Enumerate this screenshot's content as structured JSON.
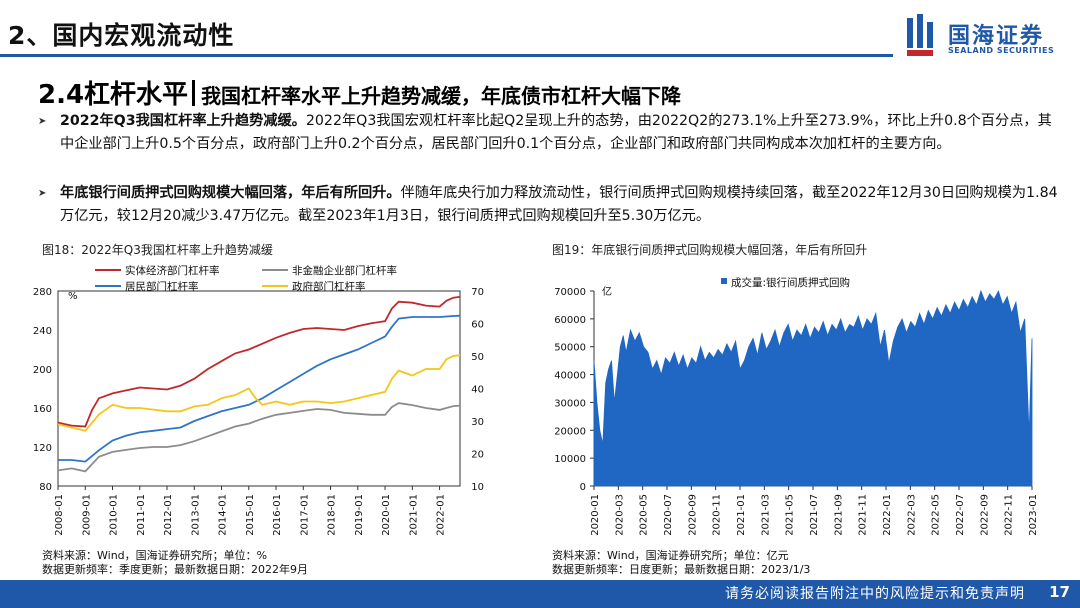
{
  "header": {
    "section_title": "2、国内宏观流动性",
    "logo_cn": "国海证券",
    "logo_en": "SEALAND SECURITIES"
  },
  "subtitle": {
    "lead": "2.4杠杆水平",
    "rest": "我国杠杆率水平上升趋势减缓，年底债市杠杆大幅下降"
  },
  "bullets": [
    {
      "bold": "2022年Q3我国杠杆率上升趋势减缓。",
      "text": "2022年Q3我国宏观杠杆率比起Q2呈现上升的态势，由2022Q2的273.1%上升至273.9%，环比上升0.8个百分点，其中企业部门上升0.5个百分点，政府部门上升0.2个百分点，居民部门回升0.1个百分点，企业部门和政府部门共同构成本次加杠杆的主要方向。"
    },
    {
      "bold": "年底银行间质押式回购规模大幅回落，年后有所回升。",
      "text": "伴随年底央行加力释放流动性，银行间质押式回购规模持续回落，截至2022年12月30日回购规模为1.84万亿元，较12月20减少3.47万亿元。截至2023年1月3日，银行间质押式回购规模回升至5.30万亿元。"
    }
  ],
  "figures": [
    {
      "caption": "图18：2022年Q3我国杠杆率上升趋势减缓",
      "source_line1": "资料来源：Wind，国海证券研究所；单位：%",
      "source_line2": "数据更新频率：季度更新；最新数据日期：2022年9月"
    },
    {
      "caption": "图19：年底银行间质押式回购规模大幅回落，年后有所回升",
      "source_line1": "资料来源：Wind，国海证券研究所；单位：亿元",
      "source_line2": "数据更新频率：日度更新；最新数据日期：2023/1/3"
    }
  ],
  "footer": {
    "disclaimer": "请务必阅读报告附注中的风险提示和免责声明",
    "page": "17"
  },
  "colors": {
    "brand": "#1f58a8",
    "red": "#c0282d",
    "gray": "#8c8c8c",
    "blue": "#2e75c9",
    "yellow": "#f5c518",
    "bar": "#1f67c2"
  },
  "chart_data": [
    {
      "type": "line",
      "title": "2022年Q3我国杠杆率上升趋势减缓",
      "left_unit": "%",
      "left_ylim": [
        80,
        280
      ],
      "left_ticks": [
        80,
        120,
        160,
        200,
        240,
        280
      ],
      "right_ylim": [
        10,
        70
      ],
      "right_ticks": [
        10,
        20,
        30,
        40,
        50,
        60,
        70
      ],
      "x_ticks": [
        "2008-01",
        "2009-01",
        "2010-01",
        "2011-01",
        "2012-01",
        "2013-01",
        "2014-01",
        "2015-01",
        "2016-01",
        "2017-01",
        "2018-01",
        "2019-01",
        "2020-01",
        "2021-01",
        "2022-01"
      ],
      "x_start": 2008.0,
      "x_end": 2022.75,
      "series": [
        {
          "name": "实体经济部门杠杆率",
          "axis": "left",
          "color": "#c0282d",
          "x": [
            2008.0,
            2008.5,
            2009.0,
            2009.25,
            2009.5,
            2010.0,
            2010.5,
            2011.0,
            2011.5,
            2012.0,
            2012.5,
            2013.0,
            2013.5,
            2014.0,
            2014.5,
            2015.0,
            2015.5,
            2016.0,
            2016.5,
            2017.0,
            2017.5,
            2018.0,
            2018.5,
            2019.0,
            2019.5,
            2020.0,
            2020.25,
            2020.5,
            2021.0,
            2021.5,
            2022.0,
            2022.25,
            2022.5,
            2022.75
          ],
          "values": [
            145,
            142,
            141,
            158,
            170,
            175,
            178,
            181,
            180,
            179,
            183,
            190,
            200,
            208,
            216,
            220,
            226,
            232,
            237,
            241,
            242,
            241,
            240,
            244,
            247,
            249,
            262,
            269,
            268,
            265,
            264,
            270,
            273.1,
            273.9
          ]
        },
        {
          "name": "非金融企业部门杠杆率",
          "axis": "left",
          "color": "#8c8c8c",
          "x": [
            2008.0,
            2008.5,
            2009.0,
            2009.5,
            2010.0,
            2010.5,
            2011.0,
            2011.5,
            2012.0,
            2012.5,
            2013.0,
            2013.5,
            2014.0,
            2014.5,
            2015.0,
            2015.5,
            2016.0,
            2016.5,
            2017.0,
            2017.5,
            2018.0,
            2018.5,
            2019.0,
            2019.5,
            2020.0,
            2020.25,
            2020.5,
            2021.0,
            2021.5,
            2022.0,
            2022.25,
            2022.5,
            2022.75
          ],
          "values": [
            96,
            98,
            95,
            110,
            115,
            117,
            119,
            120,
            120,
            122,
            126,
            131,
            136,
            141,
            144,
            149,
            153,
            155,
            157,
            159,
            158,
            155,
            154,
            153,
            153,
            161,
            165,
            163,
            160,
            158,
            160,
            162,
            162.5
          ]
        },
        {
          "name": "居民部门杠杆率",
          "axis": "right",
          "color": "#2e75c9",
          "x": [
            2008.0,
            2008.5,
            2009.0,
            2009.5,
            2010.0,
            2010.5,
            2011.0,
            2011.5,
            2012.0,
            2012.5,
            2013.0,
            2013.5,
            2014.0,
            2014.5,
            2015.0,
            2015.5,
            2016.0,
            2016.5,
            2017.0,
            2017.5,
            2018.0,
            2018.5,
            2019.0,
            2019.5,
            2020.0,
            2020.25,
            2020.5,
            2021.0,
            2021.5,
            2022.0,
            2022.5,
            2022.75
          ],
          "values": [
            18,
            18,
            17.5,
            21,
            24,
            25.5,
            26.5,
            27,
            27.5,
            28,
            30,
            31.5,
            33,
            34,
            35,
            37,
            39.5,
            42,
            44.5,
            47,
            49,
            50.5,
            52,
            54,
            56,
            59,
            61.5,
            62,
            62,
            62,
            62.3,
            62.4
          ]
        },
        {
          "name": "政府部门杠杆率",
          "axis": "right",
          "color": "#f5c518",
          "x": [
            2008.0,
            2008.5,
            2009.0,
            2009.5,
            2010.0,
            2010.5,
            2011.0,
            2011.5,
            2012.0,
            2012.5,
            2013.0,
            2013.5,
            2014.0,
            2014.5,
            2015.0,
            2015.25,
            2015.5,
            2016.0,
            2016.5,
            2017.0,
            2017.5,
            2018.0,
            2018.5,
            2019.0,
            2019.5,
            2020.0,
            2020.25,
            2020.5,
            2021.0,
            2021.5,
            2022.0,
            2022.25,
            2022.5,
            2022.75
          ],
          "values": [
            29,
            28,
            27,
            32,
            35,
            34,
            34,
            33.5,
            33,
            33,
            34.5,
            35,
            37,
            38,
            40,
            37,
            35,
            36,
            35,
            36,
            36,
            35.5,
            36,
            37,
            38,
            39,
            43,
            45.5,
            44,
            46,
            46,
            49,
            50,
            50.2
          ]
        }
      ]
    },
    {
      "type": "bar",
      "title": "年底银行间质押式回购规模大幅回落，年后有所回升",
      "series_name": "成交量:银行间质押式回购",
      "unit": "亿",
      "ylim": [
        0,
        70000
      ],
      "y_ticks": [
        0,
        10000,
        20000,
        30000,
        40000,
        50000,
        60000,
        70000
      ],
      "x_ticks": [
        "2020-01",
        "2020-03",
        "2020-05",
        "2020-07",
        "2020-09",
        "2020-11",
        "2021-01",
        "2021-03",
        "2021-05",
        "2021-07",
        "2021-09",
        "2021-11",
        "2022-01",
        "2022-03",
        "2022-05",
        "2022-07",
        "2022-09",
        "2022-11",
        "2023-01"
      ],
      "x_start": 2020.0,
      "x_end": 2023.0,
      "x": [
        2020.0,
        2020.02,
        2020.04,
        2020.06,
        2020.08,
        2020.1,
        2020.12,
        2020.14,
        2020.16,
        2020.18,
        2020.2,
        2020.22,
        2020.25,
        2020.28,
        2020.31,
        2020.34,
        2020.37,
        2020.4,
        2020.43,
        2020.46,
        2020.49,
        2020.52,
        2020.55,
        2020.58,
        2020.61,
        2020.64,
        2020.67,
        2020.7,
        2020.73,
        2020.76,
        2020.79,
        2020.82,
        2020.85,
        2020.88,
        2020.91,
        2020.94,
        2020.97,
        2021.0,
        2021.03,
        2021.06,
        2021.09,
        2021.12,
        2021.15,
        2021.18,
        2021.21,
        2021.24,
        2021.27,
        2021.3,
        2021.33,
        2021.36,
        2021.39,
        2021.42,
        2021.45,
        2021.48,
        2021.51,
        2021.54,
        2021.57,
        2021.6,
        2021.63,
        2021.66,
        2021.69,
        2021.72,
        2021.75,
        2021.78,
        2021.81,
        2021.84,
        2021.87,
        2021.9,
        2021.93,
        2021.96,
        2021.99,
        2022.02,
        2022.05,
        2022.08,
        2022.11,
        2022.14,
        2022.17,
        2022.2,
        2022.23,
        2022.26,
        2022.29,
        2022.32,
        2022.35,
        2022.38,
        2022.41,
        2022.44,
        2022.47,
        2022.5,
        2022.53,
        2022.56,
        2022.59,
        2022.62,
        2022.65,
        2022.68,
        2022.71,
        2022.74,
        2022.77,
        2022.8,
        2022.83,
        2022.86,
        2022.89,
        2022.92,
        2022.95,
        2022.98,
        2023.0
      ],
      "values": [
        45000,
        30000,
        20000,
        15000,
        37000,
        42000,
        45000,
        30000,
        40000,
        50000,
        54000,
        48000,
        56000,
        52000,
        55000,
        50000,
        48000,
        42000,
        45000,
        40000,
        46000,
        44000,
        48000,
        43000,
        47000,
        42000,
        46000,
        44000,
        50000,
        45000,
        48000,
        46000,
        49000,
        47000,
        51000,
        48000,
        52000,
        42000,
        45000,
        50000,
        53000,
        47000,
        55000,
        49000,
        52000,
        56000,
        50000,
        55000,
        58000,
        52000,
        56000,
        54000,
        58000,
        53000,
        57000,
        55000,
        59000,
        54000,
        58000,
        56000,
        60000,
        55000,
        58000,
        57000,
        61000,
        56000,
        60000,
        58000,
        62000,
        50000,
        56000,
        44000,
        52000,
        57000,
        60000,
        55000,
        59000,
        57000,
        62000,
        58000,
        63000,
        60000,
        64000,
        61000,
        65000,
        62000,
        66000,
        63000,
        67000,
        64000,
        68000,
        65000,
        70000,
        66000,
        69000,
        67000,
        70000,
        65000,
        68000,
        62000,
        66000,
        55000,
        60000,
        18400,
        53000
      ]
    }
  ]
}
